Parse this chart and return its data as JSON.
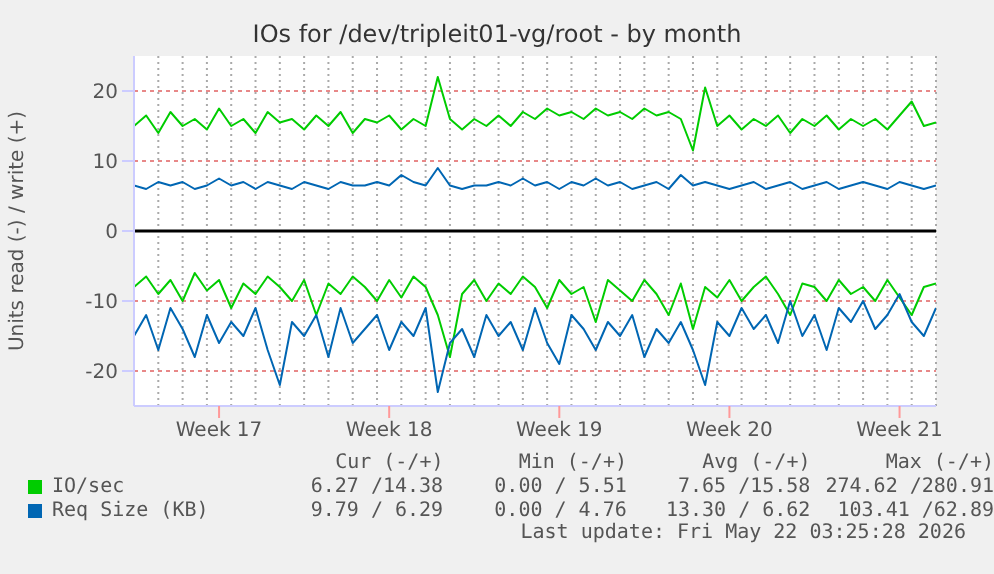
{
  "chart_data": {
    "type": "line",
    "title": "IOs for /dev/tripleit01-vg/root - by month",
    "ylabel": "Units read (-) / write (+)",
    "categories": [
      null,
      null,
      null,
      null,
      null,
      null,
      null,
      "Week 17",
      null,
      null,
      null,
      null,
      null,
      null,
      null,
      null,
      null,
      null,
      null,
      null,
      null,
      "Week 18",
      null,
      null,
      null,
      null,
      null,
      null,
      null,
      null,
      null,
      null,
      null,
      null,
      null,
      "Week 19",
      null,
      null,
      null,
      null,
      null,
      null,
      null,
      null,
      null,
      null,
      null,
      null,
      null,
      "Week 20",
      null,
      null,
      null,
      null,
      null,
      null,
      null,
      null,
      null,
      null,
      null,
      null,
      null,
      "Week 21",
      null,
      null,
      null
    ],
    "series": [
      {
        "name": "IO/sec",
        "color": "#00cc00",
        "values": [
          15,
          16.5,
          14,
          17,
          15,
          16,
          14.5,
          17.5,
          15,
          16,
          14,
          17,
          15.5,
          16,
          14.5,
          16.5,
          15,
          17,
          14,
          16,
          15.5,
          16.5,
          14.5,
          16,
          15,
          22,
          16,
          14.5,
          16,
          15,
          16.5,
          15,
          17,
          16,
          17.5,
          16.5,
          17,
          16,
          17.5,
          16.5,
          17,
          16,
          17.5,
          16.5,
          17,
          16,
          11.5,
          20.5,
          15,
          16.5,
          14.5,
          16,
          15,
          16.5,
          14,
          16,
          15,
          16.5,
          14.5,
          16,
          15,
          16,
          14.5,
          16.5,
          18.5,
          15,
          15.5
        ]
      },
      {
        "name": "Req Size (KB)",
        "color": "#0066b3",
        "values": [
          6.5,
          6,
          7,
          6.5,
          7,
          6,
          6.5,
          7.5,
          6.5,
          7,
          6,
          7,
          6.5,
          6,
          7,
          6.5,
          6,
          7,
          6.5,
          6.5,
          7,
          6.5,
          8,
          7,
          6.5,
          9,
          6.5,
          6,
          6.5,
          6.5,
          7,
          6.5,
          7.5,
          6.5,
          7,
          6,
          7,
          6.5,
          7.5,
          6.5,
          7,
          6,
          6.5,
          7,
          6,
          8,
          6.5,
          7,
          6.5,
          6,
          6.5,
          7,
          6,
          6.5,
          7,
          6,
          6.5,
          7,
          6,
          6.5,
          7,
          6.5,
          6,
          7,
          6.5,
          6,
          6.5
        ]
      },
      {
        "color": "#00cc00",
        "values": [
          -8,
          -6.5,
          -9,
          -7,
          -10,
          -6,
          -8.5,
          -7,
          -11,
          -7.5,
          -9,
          -6.5,
          -8,
          -10,
          -7,
          -12,
          -7.5,
          -9,
          -6.5,
          -8,
          -10,
          -7,
          -9.5,
          -6.5,
          -8,
          -12,
          -18,
          -9,
          -7,
          -10,
          -7.5,
          -9,
          -6.5,
          -8,
          -11,
          -7,
          -9,
          -8,
          -13,
          -7,
          -8.5,
          -10,
          -7,
          -9,
          -12,
          -7.5,
          -14,
          -8,
          -9.5,
          -7,
          -10,
          -8,
          -6.5,
          -9,
          -12,
          -7.5,
          -8,
          -10,
          -7,
          -9,
          -8,
          -10,
          -7,
          -9.5,
          -12,
          -8,
          -7.5
        ]
      },
      {
        "color": "#0066b3",
        "values": [
          -15,
          -12,
          -17,
          -11,
          -14,
          -18,
          -12,
          -16,
          -13,
          -15,
          -11,
          -17,
          -22,
          -13,
          -15,
          -12,
          -18,
          -11,
          -16,
          -14,
          -12,
          -17,
          -13,
          -15,
          -11,
          -23,
          -16,
          -14,
          -18,
          -12,
          -15,
          -13,
          -17,
          -11,
          -16,
          -19,
          -12,
          -14,
          -17,
          -13,
          -15,
          -12,
          -18,
          -14,
          -16,
          -13,
          -17,
          -22,
          -13,
          -15,
          -11,
          -14,
          -12,
          -16,
          -10,
          -15,
          -12,
          -17,
          -11,
          -13,
          -10,
          -14,
          -12,
          -9,
          -13,
          -15,
          -11
        ]
      }
    ],
    "ylim": [
      -25,
      25
    ],
    "yticks": [
      -20,
      -10,
      0,
      10,
      20
    ],
    "ref_lines": [
      {
        "axis": "y",
        "value": 0,
        "color": "#000000"
      }
    ],
    "grid": true,
    "legend": "bottom",
    "marker": "none",
    "line_style": "solid",
    "annotations": [
      "Cur (-/+)",
      "Min (-/+)",
      "Avg (-/+)",
      "Max (-/+)",
      "6.27 /14.38",
      "0.00 / 5.51",
      "7.65 /15.58",
      "274.62 /280.91",
      "9.79 / 6.29",
      "0.00 / 4.76",
      "13.30 / 6.62",
      "103.41 /62.89",
      "Last update: Fri May 22 03:25:28 2026"
    ]
  }
}
